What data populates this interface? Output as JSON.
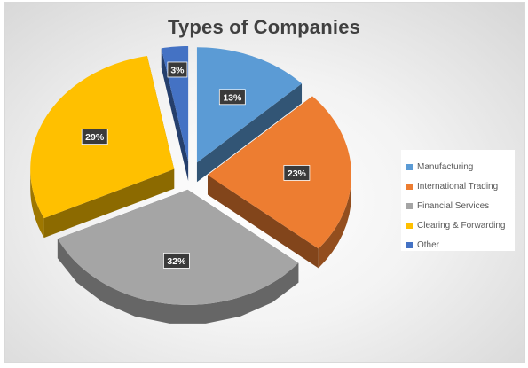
{
  "chart_data": {
    "type": "pie",
    "title": "Types of Companies",
    "categories": [
      "Manufacturing",
      "International Trading",
      "Financial Services",
      "Clearing & Forwarding",
      "Other"
    ],
    "values": [
      13,
      23,
      32,
      29,
      3
    ],
    "data_labels": [
      "13%",
      "23%",
      "32%",
      "29%",
      "3%"
    ],
    "colors": [
      "#5b9bd5",
      "#ed7d31",
      "#a5a5a5",
      "#ffc000",
      "#4472c4"
    ],
    "style": "3d exploded",
    "legend_position": "right"
  }
}
